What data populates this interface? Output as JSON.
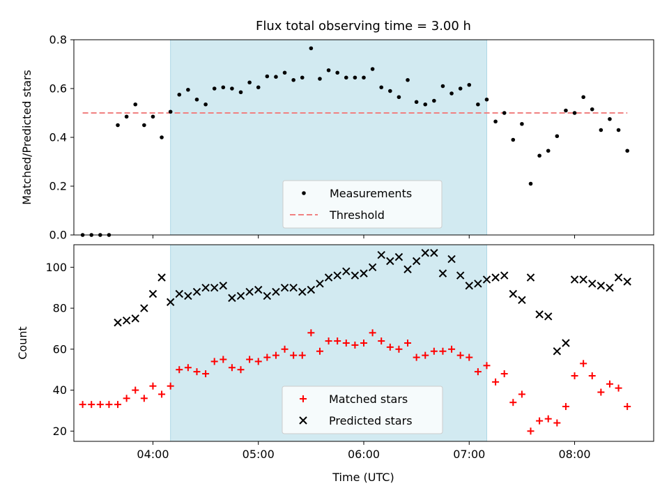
{
  "title": "Flux total observing time = 3.00 h",
  "chart_data": [
    {
      "type": "scatter",
      "title": "Flux total observing time = 3.00 h",
      "ylabel": "Matched/Predicted stars",
      "xlim": [
        "03:15",
        "08:45"
      ],
      "ylim": [
        0,
        0.8
      ],
      "yticks": [
        "0.0",
        "0.2",
        "0.4",
        "0.6",
        "0.8"
      ],
      "shaded_span": [
        "04:10",
        "07:10"
      ],
      "shaded_color": "#add8e6",
      "legend_position": "lower-center",
      "legend": [
        "Measurements",
        "Threshold"
      ],
      "series": [
        {
          "name": "Measurements",
          "color": "#000000",
          "marker": "dot",
          "points": [
            [
              "03:20",
              0.0
            ],
            [
              "03:25",
              0.0
            ],
            [
              "03:30",
              0.0
            ],
            [
              "03:35",
              0.0
            ],
            [
              "03:40",
              0.45
            ],
            [
              "03:45",
              0.485
            ],
            [
              "03:50",
              0.535
            ],
            [
              "03:55",
              0.45
            ],
            [
              "04:00",
              0.485
            ],
            [
              "04:05",
              0.4
            ],
            [
              "04:10",
              0.505
            ],
            [
              "04:15",
              0.575
            ],
            [
              "04:20",
              0.595
            ],
            [
              "04:25",
              0.555
            ],
            [
              "04:30",
              0.535
            ],
            [
              "04:35",
              0.6
            ],
            [
              "04:40",
              0.605
            ],
            [
              "04:45",
              0.6
            ],
            [
              "04:50",
              0.585
            ],
            [
              "04:55",
              0.625
            ],
            [
              "05:00",
              0.605
            ],
            [
              "05:05",
              0.65
            ],
            [
              "05:10",
              0.648
            ],
            [
              "05:15",
              0.665
            ],
            [
              "05:20",
              0.635
            ],
            [
              "05:25",
              0.645
            ],
            [
              "05:30",
              0.765
            ],
            [
              "05:35",
              0.64
            ],
            [
              "05:40",
              0.675
            ],
            [
              "05:45",
              0.665
            ],
            [
              "05:50",
              0.645
            ],
            [
              "05:55",
              0.645
            ],
            [
              "06:00",
              0.645
            ],
            [
              "06:05",
              0.68
            ],
            [
              "06:10",
              0.605
            ],
            [
              "06:15",
              0.59
            ],
            [
              "06:20",
              0.565
            ],
            [
              "06:25",
              0.635
            ],
            [
              "06:30",
              0.545
            ],
            [
              "06:35",
              0.535
            ],
            [
              "06:40",
              0.55
            ],
            [
              "06:45",
              0.61
            ],
            [
              "06:50",
              0.58
            ],
            [
              "06:55",
              0.6
            ],
            [
              "07:00",
              0.615
            ],
            [
              "07:05",
              0.535
            ],
            [
              "07:10",
              0.555
            ],
            [
              "07:15",
              0.465
            ],
            [
              "07:20",
              0.5
            ],
            [
              "07:25",
              0.39
            ],
            [
              "07:30",
              0.455
            ],
            [
              "07:35",
              0.21
            ],
            [
              "07:40",
              0.325
            ],
            [
              "07:45",
              0.345
            ],
            [
              "07:50",
              0.405
            ],
            [
              "07:55",
              0.51
            ],
            [
              "08:00",
              0.5
            ],
            [
              "08:05",
              0.565
            ],
            [
              "08:10",
              0.515
            ],
            [
              "08:15",
              0.43
            ],
            [
              "08:20",
              0.475
            ],
            [
              "08:25",
              0.43
            ],
            [
              "08:30",
              0.345
            ]
          ]
        },
        {
          "name": "Threshold",
          "color": "#f08080",
          "style": "dashed",
          "x": [
            "03:20",
            "08:30"
          ],
          "y": [
            0.5,
            0.5
          ]
        }
      ]
    },
    {
      "type": "scatter",
      "xlabel": "Time (UTC)",
      "ylabel": "Count",
      "xlim": [
        "03:15",
        "08:45"
      ],
      "ylim": [
        15,
        111
      ],
      "yticks": [
        "20",
        "40",
        "60",
        "80",
        "100"
      ],
      "xticks": [
        "04:00",
        "05:00",
        "06:00",
        "07:00",
        "08:00"
      ],
      "shaded_span": [
        "04:10",
        "07:10"
      ],
      "shaded_color": "#add8e6",
      "legend_position": "lower-center",
      "legend": [
        "Matched stars",
        "Predicted stars"
      ],
      "series": [
        {
          "name": "Matched stars",
          "color": "#ff0000",
          "marker": "plus",
          "points": [
            [
              "03:20",
              33
            ],
            [
              "03:25",
              33
            ],
            [
              "03:30",
              33
            ],
            [
              "03:35",
              33
            ],
            [
              "03:40",
              33
            ],
            [
              "03:45",
              36
            ],
            [
              "03:50",
              40
            ],
            [
              "03:55",
              36
            ],
            [
              "04:00",
              42
            ],
            [
              "04:05",
              38
            ],
            [
              "04:10",
              42
            ],
            [
              "04:15",
              50
            ],
            [
              "04:20",
              51
            ],
            [
              "04:25",
              49
            ],
            [
              "04:30",
              48
            ],
            [
              "04:35",
              54
            ],
            [
              "04:40",
              55
            ],
            [
              "04:45",
              51
            ],
            [
              "04:50",
              50
            ],
            [
              "04:55",
              55
            ],
            [
              "05:00",
              54
            ],
            [
              "05:05",
              56
            ],
            [
              "05:10",
              57
            ],
            [
              "05:15",
              60
            ],
            [
              "05:20",
              57
            ],
            [
              "05:25",
              57
            ],
            [
              "05:30",
              68
            ],
            [
              "05:35",
              59
            ],
            [
              "05:40",
              64
            ],
            [
              "05:45",
              64
            ],
            [
              "05:50",
              63
            ],
            [
              "05:55",
              62
            ],
            [
              "06:00",
              63
            ],
            [
              "06:05",
              68
            ],
            [
              "06:10",
              64
            ],
            [
              "06:15",
              61
            ],
            [
              "06:20",
              60
            ],
            [
              "06:25",
              63
            ],
            [
              "06:30",
              56
            ],
            [
              "06:35",
              57
            ],
            [
              "06:40",
              59
            ],
            [
              "06:45",
              59
            ],
            [
              "06:50",
              60
            ],
            [
              "06:55",
              57
            ],
            [
              "07:00",
              56
            ],
            [
              "07:05",
              49
            ],
            [
              "07:10",
              52
            ],
            [
              "07:15",
              44
            ],
            [
              "07:20",
              48
            ],
            [
              "07:25",
              34
            ],
            [
              "07:30",
              38
            ],
            [
              "07:35",
              20
            ],
            [
              "07:40",
              25
            ],
            [
              "07:45",
              26
            ],
            [
              "07:50",
              24
            ],
            [
              "07:55",
              32
            ],
            [
              "08:00",
              47
            ],
            [
              "08:05",
              53
            ],
            [
              "08:10",
              47
            ],
            [
              "08:15",
              39
            ],
            [
              "08:20",
              43
            ],
            [
              "08:25",
              41
            ],
            [
              "08:30",
              32
            ]
          ]
        },
        {
          "name": "Predicted stars",
          "color": "#000000",
          "marker": "x",
          "points": [
            [
              "03:40",
              73
            ],
            [
              "03:45",
              74
            ],
            [
              "03:50",
              75
            ],
            [
              "03:55",
              80
            ],
            [
              "04:00",
              87
            ],
            [
              "04:05",
              95
            ],
            [
              "04:10",
              83
            ],
            [
              "04:15",
              87
            ],
            [
              "04:20",
              86
            ],
            [
              "04:25",
              88
            ],
            [
              "04:30",
              90
            ],
            [
              "04:35",
              90
            ],
            [
              "04:40",
              91
            ],
            [
              "04:45",
              85
            ],
            [
              "04:50",
              86
            ],
            [
              "04:55",
              88
            ],
            [
              "05:00",
              89
            ],
            [
              "05:05",
              86
            ],
            [
              "05:10",
              88
            ],
            [
              "05:15",
              90
            ],
            [
              "05:20",
              90
            ],
            [
              "05:25",
              88
            ],
            [
              "05:30",
              89
            ],
            [
              "05:35",
              92
            ],
            [
              "05:40",
              95
            ],
            [
              "05:45",
              96
            ],
            [
              "05:50",
              98
            ],
            [
              "05:55",
              96
            ],
            [
              "06:00",
              97
            ],
            [
              "06:05",
              100
            ],
            [
              "06:10",
              106
            ],
            [
              "06:15",
              103
            ],
            [
              "06:20",
              105
            ],
            [
              "06:25",
              99
            ],
            [
              "06:30",
              103
            ],
            [
              "06:35",
              107
            ],
            [
              "06:40",
              107
            ],
            [
              "06:45",
              97
            ],
            [
              "06:50",
              104
            ],
            [
              "06:55",
              96
            ],
            [
              "07:00",
              91
            ],
            [
              "07:05",
              92
            ],
            [
              "07:10",
              94
            ],
            [
              "07:15",
              95
            ],
            [
              "07:20",
              96
            ],
            [
              "07:25",
              87
            ],
            [
              "07:30",
              84
            ],
            [
              "07:35",
              95
            ],
            [
              "07:40",
              77
            ],
            [
              "07:45",
              76
            ],
            [
              "07:50",
              59
            ],
            [
              "07:55",
              63
            ],
            [
              "08:00",
              94
            ],
            [
              "08:05",
              94
            ],
            [
              "08:10",
              92
            ],
            [
              "08:15",
              91
            ],
            [
              "08:20",
              90
            ],
            [
              "08:25",
              95
            ],
            [
              "08:30",
              93
            ]
          ]
        }
      ]
    }
  ]
}
